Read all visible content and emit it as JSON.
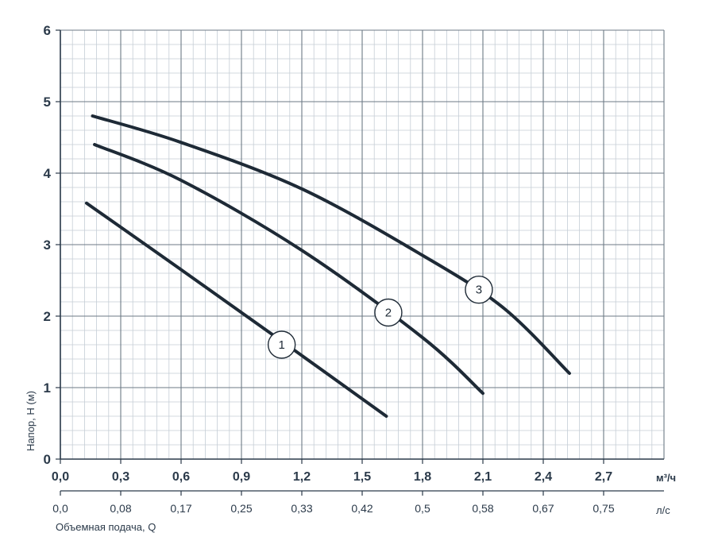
{
  "chart_data": {
    "type": "line",
    "ylabel": "Напор, H (м)",
    "xlabel": "Объемная подача, Q",
    "x_unit": "м³/ч",
    "x2_unit": "л/с",
    "xlim": [
      0,
      3.0
    ],
    "ylim": [
      0,
      6
    ],
    "x_ticks": [
      "0,0",
      "0,3",
      "0,6",
      "0,9",
      "1,2",
      "1,5",
      "1,8",
      "2,1",
      "2,4",
      "2,7"
    ],
    "x2_ticks": [
      "0,0",
      "0,08",
      "0,17",
      "0,25",
      "0,33",
      "0,42",
      "0,5",
      "0,58",
      "0,67",
      "0,75"
    ],
    "y_ticks": [
      "0",
      "1",
      "2",
      "3",
      "4",
      "5",
      "6"
    ],
    "grid": true,
    "series": [
      {
        "name": "1",
        "points": [
          [
            0.13,
            3.58
          ],
          [
            0.6,
            2.65
          ],
          [
            1.1,
            1.65
          ],
          [
            1.62,
            0.6
          ]
        ],
        "label_at": [
          1.1,
          1.6
        ]
      },
      {
        "name": "2",
        "points": [
          [
            0.17,
            4.4
          ],
          [
            0.6,
            3.9
          ],
          [
            1.2,
            2.92
          ],
          [
            1.8,
            1.7
          ],
          [
            2.1,
            0.92
          ]
        ],
        "label_at": [
          1.63,
          2.05
        ]
      },
      {
        "name": "3",
        "points": [
          [
            0.16,
            4.8
          ],
          [
            0.6,
            4.43
          ],
          [
            1.2,
            3.78
          ],
          [
            1.8,
            2.85
          ],
          [
            2.2,
            2.12
          ],
          [
            2.53,
            1.2
          ]
        ],
        "label_at": [
          2.08,
          2.37
        ]
      }
    ]
  }
}
